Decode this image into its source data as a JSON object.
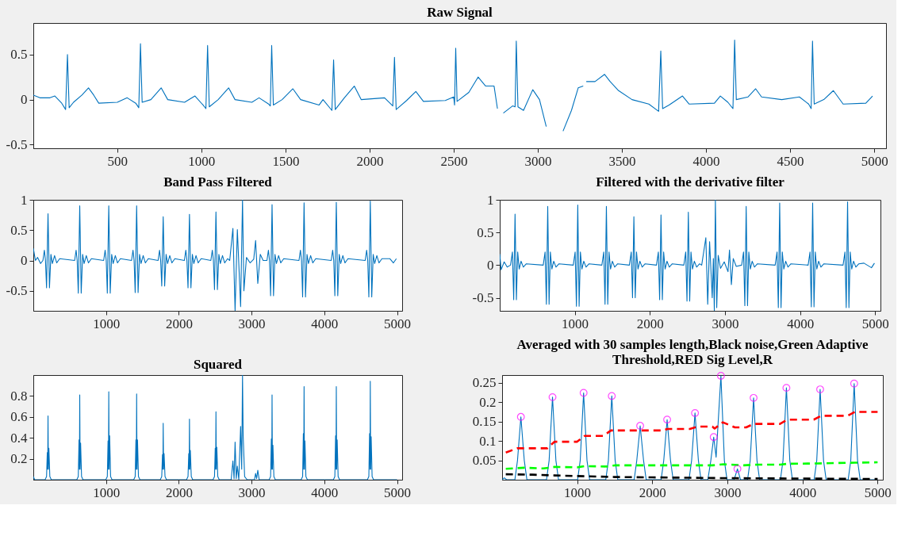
{
  "chart_data": [
    {
      "type": "line",
      "title": "Raw Signal",
      "xlim": [
        1,
        5070
      ],
      "ylim": [
        -0.54,
        0.85
      ],
      "xticks": [
        500,
        1000,
        1500,
        2000,
        2500,
        3000,
        3500,
        4000,
        4500,
        5000
      ],
      "yticks": [
        -0.5,
        0,
        0.5
      ],
      "series": [
        {
          "color": "#0072bd",
          "x": [
            1,
            40,
            100,
            129,
            170,
            193,
            204,
            214,
            240,
            290,
            329,
            360,
            390,
            500,
            559,
            610,
            628,
            638,
            648,
            700,
            761,
            800,
            900,
            962,
            1010,
            1027,
            1037,
            1047,
            1100,
            1162,
            1200,
            1300,
            1343,
            1400,
            1410,
            1418,
            1428,
            1480,
            1544,
            1590,
            1700,
            1723,
            1776,
            1786,
            1796,
            1850,
            1909,
            1950,
            2089,
            2138,
            2148,
            2158,
            2220,
            2275,
            2320,
            2450,
            2500,
            2505,
            2512,
            2520,
            2590,
            2645,
            2690,
            2740,
            2760,
            2773,
            2795,
            2850,
            2865,
            2872,
            2882,
            2915,
            2970,
            3010,
            3050,
            3086,
            3150,
            3200,
            3240,
            3270,
            3278,
            3288,
            3340,
            3397,
            3430,
            3480,
            3560,
            3660,
            3718,
            3731,
            3742,
            3780,
            3860,
            3900,
            4050,
            4085,
            4130,
            4160,
            4170,
            4180,
            4250,
            4295,
            4330,
            4450,
            4555,
            4610,
            4625,
            4633,
            4643,
            4700,
            4757,
            4815,
            4950,
            4990
          ],
          "values": [
            0.05,
            0.02,
            0.02,
            0.04,
            -0.04,
            -0.11,
            0.5,
            -0.09,
            -0.03,
            0.05,
            0.13,
            0.05,
            -0.04,
            -0.03,
            0.02,
            -0.04,
            -0.09,
            0.62,
            -0.03,
            0.0,
            0.13,
            0.0,
            -0.03,
            0.04,
            -0.06,
            -0.1,
            0.6,
            -0.08,
            0.0,
            0.13,
            0.0,
            -0.03,
            0.02,
            -0.05,
            -0.07,
            0.6,
            -0.06,
            0.0,
            0.12,
            0.0,
            -0.06,
            0.0,
            -0.12,
            0.44,
            -0.11,
            0.02,
            0.15,
            0.0,
            0.02,
            -0.07,
            0.47,
            -0.11,
            -0.01,
            0.09,
            -0.02,
            -0.01,
            0.03,
            -0.06,
            0.57,
            -0.02,
            0.08,
            0.25,
            0.15,
            0.15,
            -0.1,
            null,
            -0.15,
            -0.07,
            -0.08,
            0.65,
            -0.08,
            -0.12,
            0.11,
            0.0,
            -0.3,
            null,
            -0.35,
            -0.12,
            0.13,
            0.15,
            null,
            0.2,
            0.2,
            0.28,
            0.2,
            0.1,
            0.0,
            -0.05,
            -0.13,
            0.54,
            -0.1,
            -0.06,
            0.04,
            -0.05,
            -0.04,
            0.04,
            -0.03,
            -0.1,
            0.66,
            0.0,
            0.03,
            0.12,
            0.03,
            0.0,
            0.03,
            -0.05,
            -0.1,
            0.65,
            -0.05,
            0.0,
            0.1,
            -0.05,
            -0.04,
            0.04
          ]
        }
      ]
    },
    {
      "type": "line",
      "title": "Band Pass Filtered",
      "xlim": [
        1,
        5070
      ],
      "ylim": [
        -0.83,
        1
      ],
      "xticks": [
        1000,
        2000,
        3000,
        4000,
        5000
      ],
      "yticks": [
        -0.5,
        0,
        0.5,
        1
      ],
      "series": [
        {
          "color": "#0072bd",
          "x": [
            1,
            30,
            60,
            100,
            133,
            153,
            168,
            183,
            203,
            223,
            243,
            263,
            293,
            323,
            363,
            569,
            589,
            604,
            619,
            639,
            659,
            679,
            699,
            729,
            759,
            799,
            968,
            988,
            1003,
            1018,
            1038,
            1058,
            1078,
            1098,
            1128,
            1158,
            1198,
            1351,
            1371,
            1386,
            1401,
            1421,
            1441,
            1461,
            1481,
            1511,
            1541,
            1581,
            1716,
            1736,
            1751,
            1766,
            1786,
            1806,
            1826,
            1846,
            1876,
            1906,
            1946,
            2077,
            2097,
            2112,
            2127,
            2147,
            2167,
            2187,
            2207,
            2237,
            2267,
            2307,
            2441,
            2461,
            2476,
            2491,
            2511,
            2531,
            2551,
            2571,
            2601,
            2631,
            2671,
            2700,
            2744,
            2774,
            2805,
            2850,
            2876,
            2895,
            2930,
            2980,
            3030,
            3056,
            3086,
            3120,
            3160,
            3212,
            3232,
            3247,
            3262,
            3282,
            3302,
            3322,
            3342,
            3372,
            3402,
            3442,
            3652,
            3672,
            3687,
            3702,
            3722,
            3742,
            3762,
            3782,
            3812,
            3842,
            3882,
            4095,
            4115,
            4130,
            4145,
            4165,
            4185,
            4205,
            4225,
            4255,
            4285,
            4325,
            4562,
            4582,
            4597,
            4612,
            4632,
            4652,
            4672,
            4692,
            4722,
            4752,
            4792,
            4900,
            4950,
            4990
          ],
          "values": [
            0.2,
            0.0,
            0.05,
            -0.05,
            0.0,
            0.17,
            0.0,
            -0.45,
            0.77,
            -0.45,
            0.1,
            -0.05,
            0.08,
            -0.04,
            0.03,
            0.0,
            0.17,
            0.0,
            -0.54,
            0.9,
            -0.54,
            0.1,
            -0.05,
            0.08,
            -0.04,
            0.03,
            0.0,
            0.17,
            0.0,
            -0.54,
            0.9,
            -0.54,
            0.1,
            -0.05,
            0.08,
            -0.04,
            0.03,
            0.0,
            0.17,
            0.0,
            -0.53,
            0.9,
            -0.53,
            0.1,
            -0.05,
            0.08,
            -0.04,
            0.03,
            0.0,
            0.17,
            0.0,
            -0.42,
            0.72,
            -0.42,
            0.1,
            -0.05,
            0.08,
            -0.04,
            0.03,
            0.0,
            0.17,
            0.0,
            -0.45,
            0.76,
            -0.45,
            0.1,
            -0.05,
            0.08,
            -0.04,
            0.03,
            0.0,
            0.17,
            0.0,
            -0.48,
            0.8,
            -0.48,
            0.1,
            -0.05,
            0.08,
            -0.04,
            0.03,
            0.0,
            0.53,
            -0.83,
            0.51,
            -0.76,
            1.0,
            -0.5,
            0.05,
            -0.04,
            0.02,
            0.33,
            -0.38,
            0.1,
            0.0,
            0.0,
            0.17,
            0.0,
            -0.58,
            0.92,
            -0.58,
            0.1,
            -0.05,
            0.08,
            -0.04,
            0.03,
            0.0,
            0.17,
            0.0,
            -0.6,
            0.95,
            -0.6,
            0.1,
            -0.05,
            0.08,
            -0.04,
            0.03,
            0.0,
            0.17,
            0.0,
            -0.58,
            0.96,
            -0.58,
            0.1,
            -0.05,
            0.08,
            -0.04,
            0.03,
            0.0,
            0.17,
            0.0,
            -0.6,
            0.98,
            -0.6,
            0.1,
            -0.05,
            0.08,
            -0.04,
            0.03,
            0.03,
            -0.04,
            0.03
          ]
        }
      ]
    },
    {
      "type": "line",
      "title": "Filtered with the derivative filter",
      "xlim": [
        1,
        5070
      ],
      "ylim": [
        -0.7,
        1
      ],
      "xticks": [
        1000,
        2000,
        3000,
        4000,
        5000
      ],
      "yticks": [
        -0.5,
        0,
        0.5,
        1
      ],
      "series": [
        {
          "color": "#0072bd",
          "x": [
            1,
            20,
            60,
            100,
            145,
            170,
            187,
            205,
            223,
            240,
            260,
            285,
            315,
            355,
            580,
            605,
            622,
            640,
            658,
            675,
            695,
            720,
            750,
            790,
            980,
            1005,
            1022,
            1040,
            1058,
            1075,
            1095,
            1120,
            1150,
            1190,
            1361,
            1386,
            1403,
            1421,
            1439,
            1456,
            1476,
            1501,
            1531,
            1571,
            1727,
            1752,
            1769,
            1787,
            1805,
            1822,
            1842,
            1867,
            1897,
            1937,
            2088,
            2113,
            2130,
            2148,
            2166,
            2183,
            2203,
            2228,
            2258,
            2298,
            2452,
            2477,
            2494,
            2512,
            2530,
            2547,
            2567,
            2592,
            2622,
            2662,
            2690,
            2745,
            2770,
            2795,
            2830,
            2845,
            2858,
            2872,
            2890,
            2910,
            2940,
            2990,
            3040,
            3060,
            3085,
            3110,
            3150,
            3222,
            3247,
            3264,
            3282,
            3300,
            3317,
            3337,
            3362,
            3392,
            3432,
            3668,
            3693,
            3710,
            3728,
            3746,
            3763,
            3783,
            3808,
            3838,
            3878,
            4107,
            4132,
            4149,
            4167,
            4185,
            4202,
            4222,
            4247,
            4277,
            4317,
            4572,
            4597,
            4614,
            4632,
            4650,
            4667,
            4687,
            4712,
            4742,
            4782,
            4850,
            4950,
            4990
          ],
          "values": [
            0.17,
            -0.07,
            0.05,
            -0.03,
            0.0,
            0.2,
            -0.53,
            0.78,
            -0.53,
            0.2,
            -0.06,
            0.06,
            -0.03,
            0.02,
            0.0,
            0.2,
            -0.6,
            0.9,
            -0.6,
            0.2,
            -0.06,
            0.06,
            -0.03,
            0.02,
            0.0,
            0.2,
            -0.63,
            0.92,
            -0.63,
            0.2,
            -0.06,
            0.06,
            -0.03,
            0.02,
            0.0,
            0.2,
            -0.6,
            0.9,
            -0.6,
            0.2,
            -0.06,
            0.06,
            -0.03,
            0.02,
            0.0,
            0.2,
            -0.5,
            0.74,
            -0.5,
            0.2,
            -0.06,
            0.06,
            -0.03,
            0.02,
            0.0,
            0.2,
            -0.53,
            0.77,
            -0.53,
            0.2,
            -0.06,
            0.06,
            -0.03,
            0.02,
            0.0,
            0.2,
            -0.55,
            0.81,
            -0.55,
            0.2,
            -0.06,
            0.06,
            -0.03,
            0.02,
            0.0,
            0.42,
            -0.6,
            0.36,
            -0.5,
            0.1,
            -0.7,
            1.0,
            -0.65,
            0.15,
            -0.05,
            0.05,
            -0.1,
            0.23,
            -0.3,
            0.1,
            -0.02,
            0.0,
            0.2,
            -0.62,
            0.9,
            -0.62,
            0.2,
            -0.06,
            0.06,
            -0.03,
            0.02,
            0.0,
            0.2,
            -0.65,
            0.95,
            -0.65,
            0.2,
            -0.06,
            0.06,
            -0.03,
            0.02,
            0.0,
            0.2,
            -0.64,
            0.95,
            -0.64,
            0.2,
            -0.06,
            0.06,
            -0.03,
            0.02,
            0.0,
            0.2,
            -0.65,
            0.97,
            -0.65,
            0.2,
            -0.06,
            0.06,
            -0.03,
            0.02,
            0.03,
            -0.04,
            0.03
          ]
        }
      ]
    },
    {
      "type": "line",
      "title": "Squared",
      "xlim": [
        1,
        5070
      ],
      "ylim": [
        0,
        1
      ],
      "xticks": [
        1000,
        2000,
        3000,
        4000,
        5000
      ],
      "yticks": [
        0.2,
        0.4,
        0.6,
        0.8
      ],
      "series": [
        {
          "color": "#0072bd",
          "x": [
            1,
            20,
            163,
            183,
            193,
            199,
            203,
            208,
            215,
            228,
            248,
            599,
            619,
            629,
            635,
            639,
            644,
            651,
            664,
            684,
            998,
            1018,
            1028,
            1034,
            1038,
            1043,
            1050,
            1063,
            1083,
            1381,
            1401,
            1411,
            1417,
            1421,
            1426,
            1433,
            1446,
            1466,
            1746,
            1766,
            1776,
            1782,
            1786,
            1791,
            1798,
            1811,
            1831,
            2107,
            2127,
            2137,
            2143,
            2147,
            2152,
            2159,
            2172,
            2192,
            2471,
            2491,
            2501,
            2507,
            2511,
            2516,
            2523,
            2536,
            2556,
            2720,
            2744,
            2760,
            2774,
            2790,
            2805,
            2825,
            2850,
            2865,
            2876,
            2885,
            2905,
            2940,
            3040,
            3056,
            3070,
            3086,
            3105,
            3242,
            3262,
            3272,
            3278,
            3282,
            3287,
            3294,
            3307,
            3327,
            3682,
            3702,
            3712,
            3718,
            3722,
            3727,
            3734,
            3747,
            3767,
            4125,
            4145,
            4155,
            4161,
            4165,
            4170,
            4177,
            4190,
            4210,
            4592,
            4612,
            4622,
            4628,
            4632,
            4637,
            4644,
            4657,
            4677,
            5000
          ],
          "values": [
            0.03,
            0.0,
            0.0,
            0.03,
            0.26,
            0.1,
            0.61,
            0.1,
            0.3,
            0.03,
            0.0,
            0.0,
            0.03,
            0.38,
            0.1,
            0.81,
            0.1,
            0.35,
            0.03,
            0.0,
            0.0,
            0.03,
            0.37,
            0.1,
            0.84,
            0.1,
            0.42,
            0.03,
            0.0,
            0.0,
            0.03,
            0.38,
            0.1,
            0.82,
            0.1,
            0.38,
            0.03,
            0.0,
            0.0,
            0.03,
            0.24,
            0.1,
            0.54,
            0.1,
            0.25,
            0.03,
            0.0,
            0.0,
            0.03,
            0.25,
            0.1,
            0.58,
            0.1,
            0.28,
            0.03,
            0.0,
            0.0,
            0.03,
            0.3,
            0.1,
            0.65,
            0.1,
            0.31,
            0.03,
            0.0,
            0.0,
            0.18,
            0.01,
            0.36,
            0.01,
            0.13,
            0.0,
            0.51,
            0.1,
            1.0,
            0.42,
            0.03,
            0.0,
            0.0,
            0.06,
            0.01,
            0.09,
            0.0,
            0.0,
            0.03,
            0.39,
            0.1,
            0.81,
            0.1,
            0.33,
            0.03,
            0.0,
            0.0,
            0.03,
            0.44,
            0.1,
            0.89,
            0.1,
            0.37,
            0.03,
            0.0,
            0.0,
            0.03,
            0.42,
            0.1,
            0.89,
            0.1,
            0.38,
            0.03,
            0.0,
            0.0,
            0.03,
            0.44,
            0.1,
            0.94,
            0.1,
            0.41,
            0.03,
            0.0,
            0.0
          ]
        }
      ]
    },
    {
      "type": "line",
      "title": "Averaged with 30 samples length,Black noise,Green Adaptive Threshold,RED Sig Level,R",
      "xlim": [
        1,
        5070
      ],
      "ylim": [
        0,
        0.27
      ],
      "xticks": [
        1000,
        2000,
        3000,
        4000,
        5000
      ],
      "yticks": [
        0.05,
        0.1,
        0.15,
        0.2,
        0.25
      ],
      "series": [
        {
          "color": "#0072bd",
          "x": [
            1,
            30,
            60,
            171,
            206,
            251,
            296,
            331,
            592,
            627,
            672,
            717,
            752,
            1006,
            1041,
            1086,
            1131,
            1166,
            1381,
            1416,
            1461,
            1506,
            1541,
            1759,
            1794,
            1839,
            1884,
            1919,
            2118,
            2153,
            2198,
            2243,
            2278,
            2489,
            2524,
            2569,
            2614,
            2649,
            2740,
            2780,
            2818,
            2850,
            2914,
            2960,
            2995,
            3090,
            3134,
            3175,
            3269,
            3304,
            3349,
            3394,
            3429,
            3706,
            3741,
            3786,
            3831,
            3866,
            4155,
            4190,
            4235,
            4280,
            4315,
            4608,
            4643,
            4688,
            4733,
            4768,
            5000
          ],
          "values": [
            0.0,
            0.005,
            0.0,
            0.0,
            0.05,
            0.162,
            0.05,
            0.0,
            0.0,
            0.05,
            0.213,
            0.05,
            0.0,
            0.0,
            0.05,
            0.224,
            0.05,
            0.0,
            0.0,
            0.05,
            0.216,
            0.05,
            0.0,
            0.0,
            0.05,
            0.139,
            0.05,
            0.0,
            0.0,
            0.05,
            0.155,
            0.05,
            0.0,
            0.0,
            0.05,
            0.172,
            0.05,
            0.0,
            0.0,
            0.05,
            0.11,
            0.058,
            0.268,
            0.05,
            0.0,
            0.0,
            0.028,
            0.0,
            0.0,
            0.05,
            0.211,
            0.05,
            0.0,
            0.0,
            0.05,
            0.237,
            0.05,
            0.0,
            0.0,
            0.05,
            0.233,
            0.05,
            0.0,
            0.0,
            0.05,
            0.248,
            0.05,
            0.0,
            0.0
          ]
        },
        {
          "color": "#ff0000",
          "line_style": "dashed",
          "x": [
            50,
            200,
            600,
            700,
            1000,
            1100,
            1350,
            1450,
            2150,
            2200,
            2500,
            2600,
            2800,
            2830,
            2940,
            3100,
            3250,
            3350,
            3700,
            3800,
            4150,
            4250,
            4600,
            4700,
            5000
          ],
          "values": [
            0.07,
            0.081,
            0.081,
            0.098,
            0.098,
            0.113,
            0.113,
            0.127,
            0.127,
            0.131,
            0.131,
            0.137,
            0.137,
            0.132,
            0.148,
            0.135,
            0.135,
            0.144,
            0.144,
            0.155,
            0.155,
            0.165,
            0.165,
            0.175,
            0.175
          ]
        },
        {
          "color": "#00ff00",
          "line_style": "dashed",
          "x": [
            50,
            300,
            550,
            700,
            1000,
            1100,
            1400,
            1500,
            2800,
            2950,
            3200,
            3400,
            3700,
            3800,
            4200,
            4700,
            5000
          ],
          "values": [
            0.028,
            0.031,
            0.029,
            0.033,
            0.032,
            0.035,
            0.034,
            0.037,
            0.037,
            0.04,
            0.037,
            0.039,
            0.039,
            0.041,
            0.042,
            0.044,
            0.045
          ]
        },
        {
          "color": "#000000",
          "line_style": "dashed",
          "x": [
            50,
            400,
            700,
            1100,
            1500,
            2000,
            2500,
            3000,
            4000,
            5000
          ],
          "values": [
            0.014,
            0.013,
            0.011,
            0.009,
            0.007,
            0.006,
            0.005,
            0.004,
            0.003,
            0.002
          ]
        },
        {
          "type": "scatter",
          "marker": "circle",
          "color": "#ff00ff",
          "x": [
            251,
            672,
            1086,
            1461,
            1839,
            2198,
            2569,
            2818,
            2914,
            3134,
            3349,
            3786,
            4235,
            4688
          ],
          "values": [
            0.162,
            0.213,
            0.224,
            0.216,
            0.139,
            0.155,
            0.172,
            0.11,
            0.268,
            0.028,
            0.211,
            0.237,
            0.233,
            0.248
          ]
        }
      ]
    }
  ]
}
